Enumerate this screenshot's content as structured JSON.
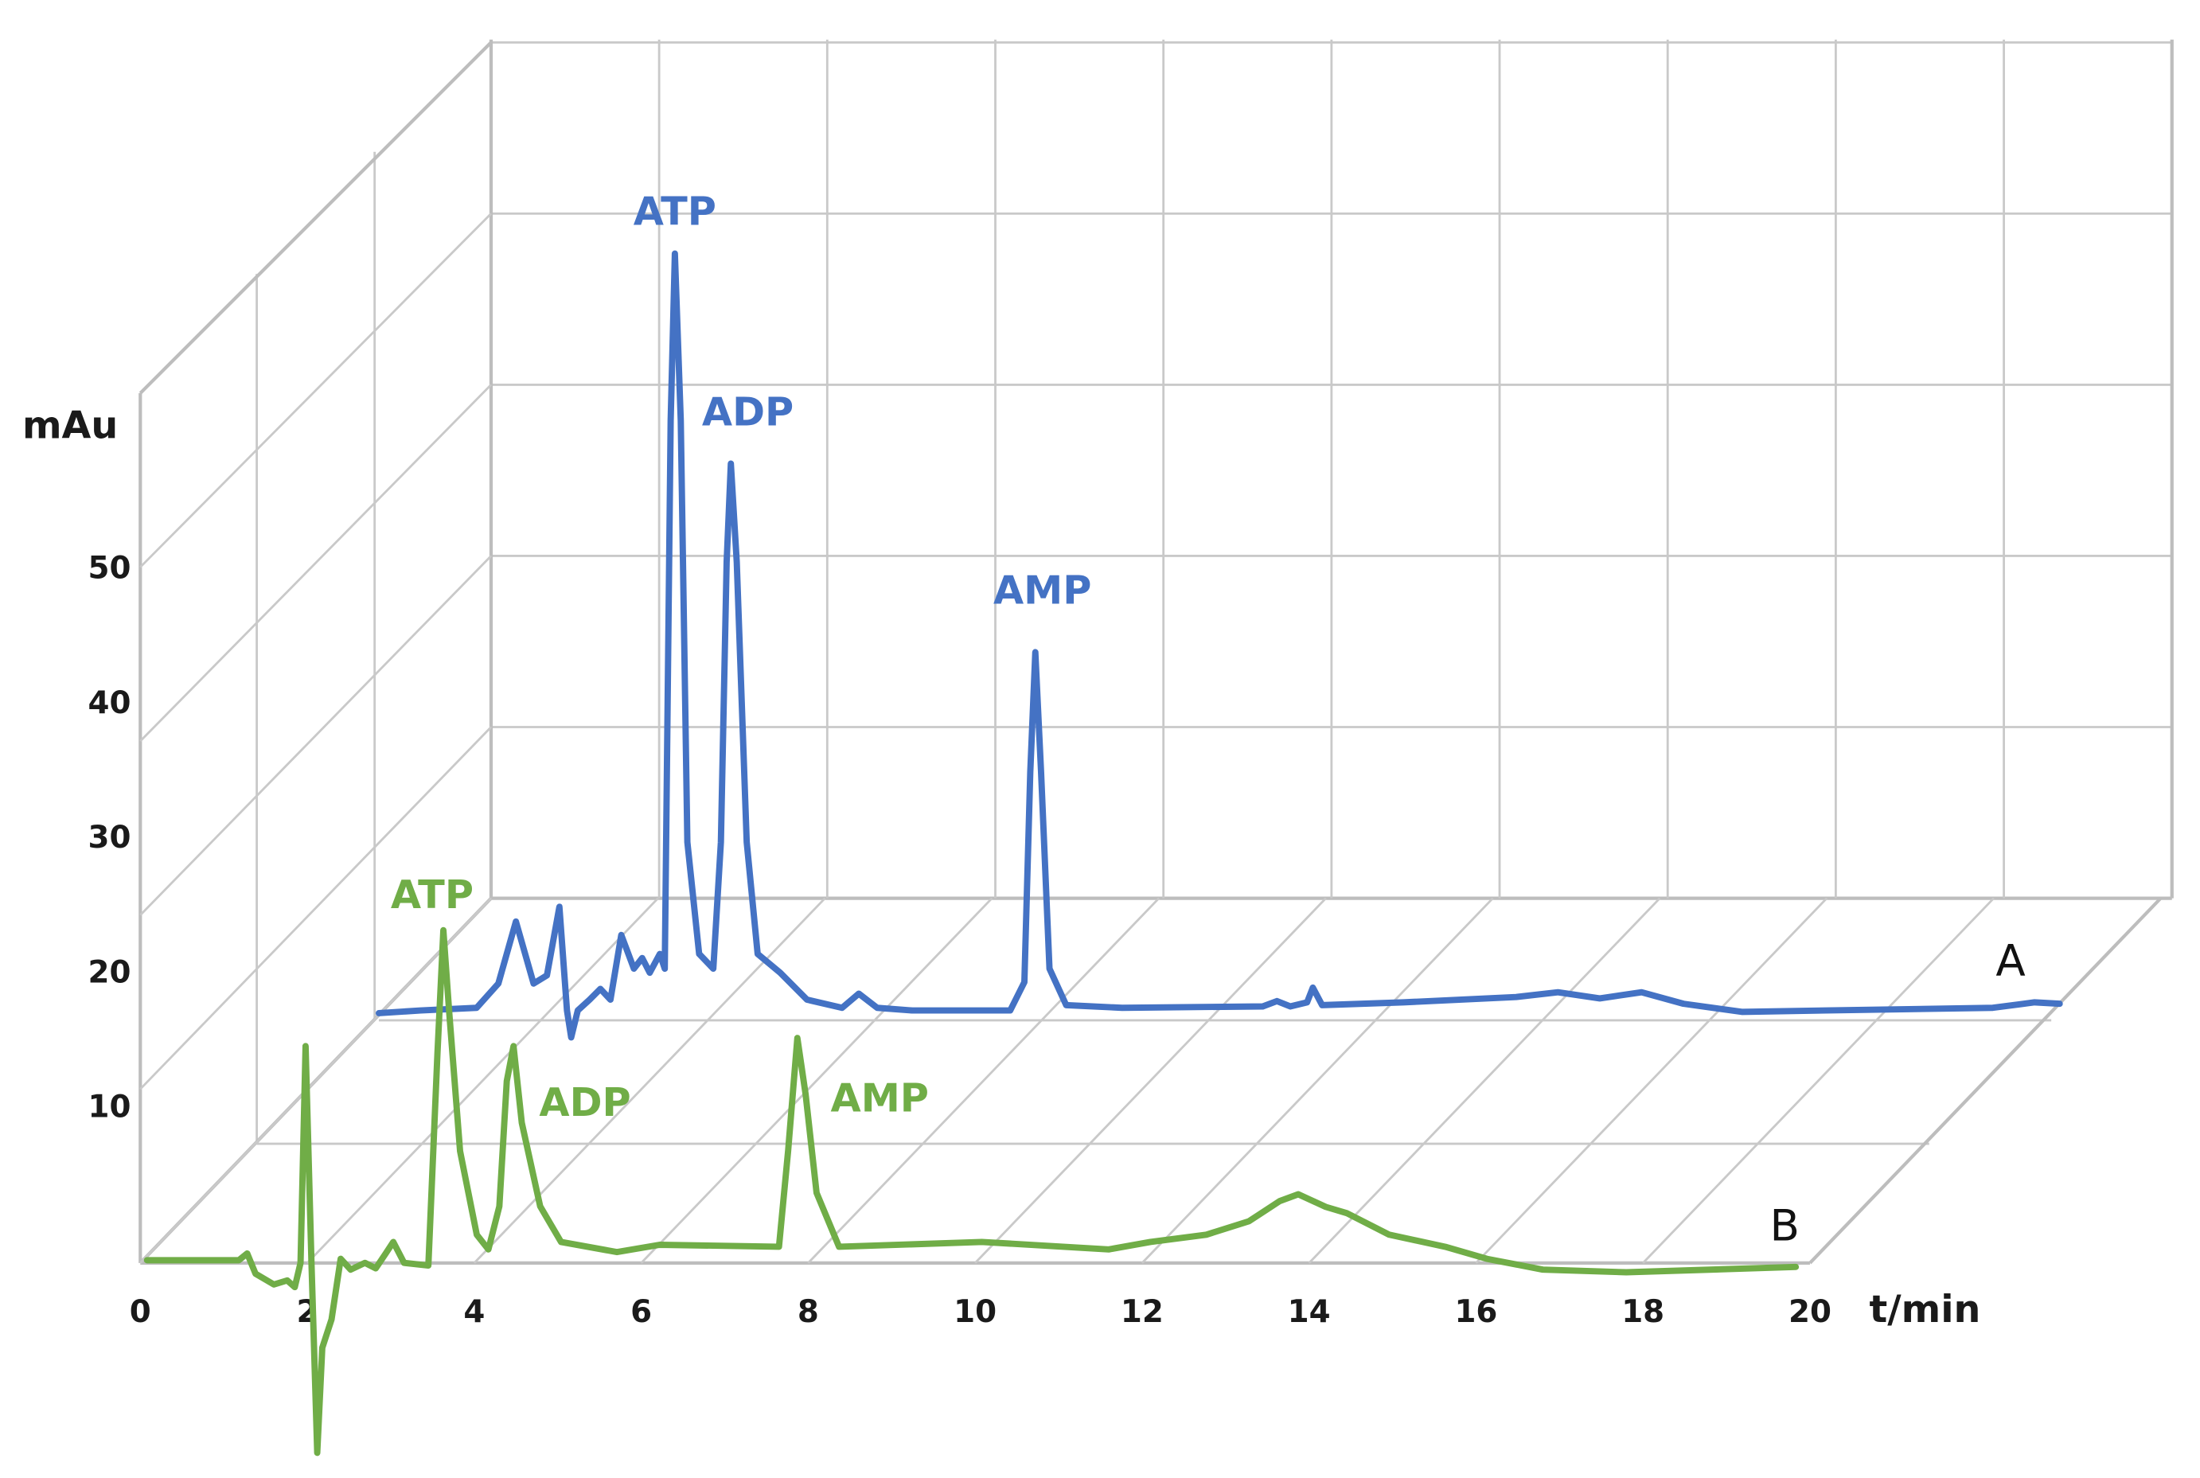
{
  "chart_data": {
    "type": "line",
    "style": "3d-stacked-chromatogram",
    "title": "",
    "xlabel": "t/min",
    "ylabel": "mAu",
    "xlim": [
      0,
      20
    ],
    "ylim": [
      0,
      50
    ],
    "x_ticks": [
      "0",
      "2",
      "4",
      "6",
      "8",
      "10",
      "12",
      "14",
      "16",
      "18",
      "20"
    ],
    "y_ticks": [
      "10",
      "20",
      "30",
      "40",
      "50"
    ],
    "grid": true,
    "legend": "none",
    "series": [
      {
        "name": "A",
        "color": "#4472C4",
        "points": [
          [
            0,
            -0.2
          ],
          [
            0.5,
            0
          ],
          [
            1.17,
            0.2
          ],
          [
            1.43,
            2
          ],
          [
            1.64,
            6.6
          ],
          [
            1.85,
            2
          ],
          [
            2.01,
            2.6
          ],
          [
            2.16,
            7.7
          ],
          [
            2.25,
            0
          ],
          [
            2.3,
            -2
          ],
          [
            2.38,
            0
          ],
          [
            2.52,
            0.8
          ],
          [
            2.65,
            1.6
          ],
          [
            2.77,
            0.8
          ],
          [
            2.9,
            5.6
          ],
          [
            3.05,
            3.1
          ],
          [
            3.15,
            3.9
          ],
          [
            3.24,
            2.8
          ],
          [
            3.36,
            4.2
          ],
          [
            3.42,
            3.1
          ],
          [
            3.49,
            43.8
          ],
          [
            3.54,
            56.2
          ],
          [
            3.61,
            43.8
          ],
          [
            3.69,
            12.5
          ],
          [
            3.83,
            4.2
          ],
          [
            4.0,
            3.1
          ],
          [
            4.09,
            12.5
          ],
          [
            4.16,
            33.3
          ],
          [
            4.21,
            40.6
          ],
          [
            4.28,
            33.3
          ],
          [
            4.4,
            12.5
          ],
          [
            4.53,
            4.2
          ],
          [
            4.8,
            2.8
          ],
          [
            5.12,
            0.8
          ],
          [
            5.54,
            0.2
          ],
          [
            5.74,
            1.25
          ],
          [
            5.96,
            0.2
          ],
          [
            6.38,
            0
          ],
          [
            7.55,
            0
          ],
          [
            7.72,
            2.1
          ],
          [
            7.79,
            17.7
          ],
          [
            7.85,
            26.6
          ],
          [
            7.92,
            17.7
          ],
          [
            8.02,
            3.1
          ],
          [
            8.22,
            0.4
          ],
          [
            8.89,
            0.2
          ],
          [
            10.57,
            0.3
          ],
          [
            10.74,
            0.7
          ],
          [
            10.9,
            0.3
          ],
          [
            11.1,
            0.6
          ],
          [
            11.17,
            1.7
          ],
          [
            11.28,
            0.4
          ],
          [
            12.25,
            0.6
          ],
          [
            13.6,
            1.0
          ],
          [
            14.1,
            1.35
          ],
          [
            14.6,
            0.9
          ],
          [
            15.1,
            1.35
          ],
          [
            15.6,
            0.5
          ],
          [
            16.3,
            -0.1
          ],
          [
            17.3,
            0
          ],
          [
            19.3,
            0.2
          ],
          [
            19.8,
            0.6
          ],
          [
            20.1,
            0.5
          ]
        ],
        "annotations": [
          {
            "text": "ATP",
            "x": 3.54,
            "y": 56.2
          },
          {
            "text": "ADP",
            "x": 4.21,
            "y": 40.6
          },
          {
            "text": "AMP",
            "x": 7.85,
            "y": 26.6
          }
        ]
      },
      {
        "name": "B",
        "color": "#70AD47",
        "points": [
          [
            0.08,
            0
          ],
          [
            1.18,
            0
          ],
          [
            1.28,
            0.5
          ],
          [
            1.38,
            -1
          ],
          [
            1.6,
            -1.8
          ],
          [
            1.76,
            -1.5
          ],
          [
            1.85,
            -2
          ],
          [
            1.92,
            -0.2
          ],
          [
            1.98,
            15.9
          ],
          [
            2.05,
            -0.2
          ],
          [
            2.12,
            -14.3
          ],
          [
            2.18,
            -6.5
          ],
          [
            2.29,
            -4.4
          ],
          [
            2.4,
            0.1
          ],
          [
            2.52,
            -0.7
          ],
          [
            2.69,
            -0.2
          ],
          [
            2.82,
            -0.6
          ],
          [
            2.94,
            0.5
          ],
          [
            3.03,
            1.35
          ],
          [
            3.16,
            -0.2
          ],
          [
            3.45,
            -0.4
          ],
          [
            3.56,
            15.4
          ],
          [
            3.63,
            24.5
          ],
          [
            3.7,
            18.5
          ],
          [
            3.83,
            8.1
          ],
          [
            4.03,
            1.9
          ],
          [
            4.17,
            0.8
          ],
          [
            4.3,
            4
          ],
          [
            4.39,
            13.3
          ],
          [
            4.47,
            15.9
          ],
          [
            4.57,
            10.2
          ],
          [
            4.79,
            4
          ],
          [
            5.04,
            1.35
          ],
          [
            5.71,
            0.6
          ],
          [
            6.22,
            1.15
          ],
          [
            7.65,
            1.0
          ],
          [
            7.76,
            8.1
          ],
          [
            7.87,
            16.5
          ],
          [
            7.97,
            12.3
          ],
          [
            8.1,
            5
          ],
          [
            8.37,
            1
          ],
          [
            10.08,
            1.35
          ],
          [
            11.6,
            0.8
          ],
          [
            12.1,
            1.35
          ],
          [
            12.77,
            1.9
          ],
          [
            13.28,
            2.9
          ],
          [
            13.65,
            4.4
          ],
          [
            13.87,
            4.9
          ],
          [
            14.2,
            3.96
          ],
          [
            14.45,
            3.5
          ],
          [
            14.96,
            1.9
          ],
          [
            15.63,
            1.0
          ],
          [
            16.13,
            0.1
          ],
          [
            16.8,
            -0.7
          ],
          [
            17.8,
            -0.9
          ],
          [
            19.83,
            -0.5
          ]
        ],
        "annotations": [
          {
            "text": "ATP",
            "x": 3.63,
            "y": 24.5
          },
          {
            "text": "ADP",
            "x": 4.47,
            "y": 15.9
          },
          {
            "text": "AMP",
            "x": 7.87,
            "y": 16.5
          }
        ]
      }
    ]
  }
}
